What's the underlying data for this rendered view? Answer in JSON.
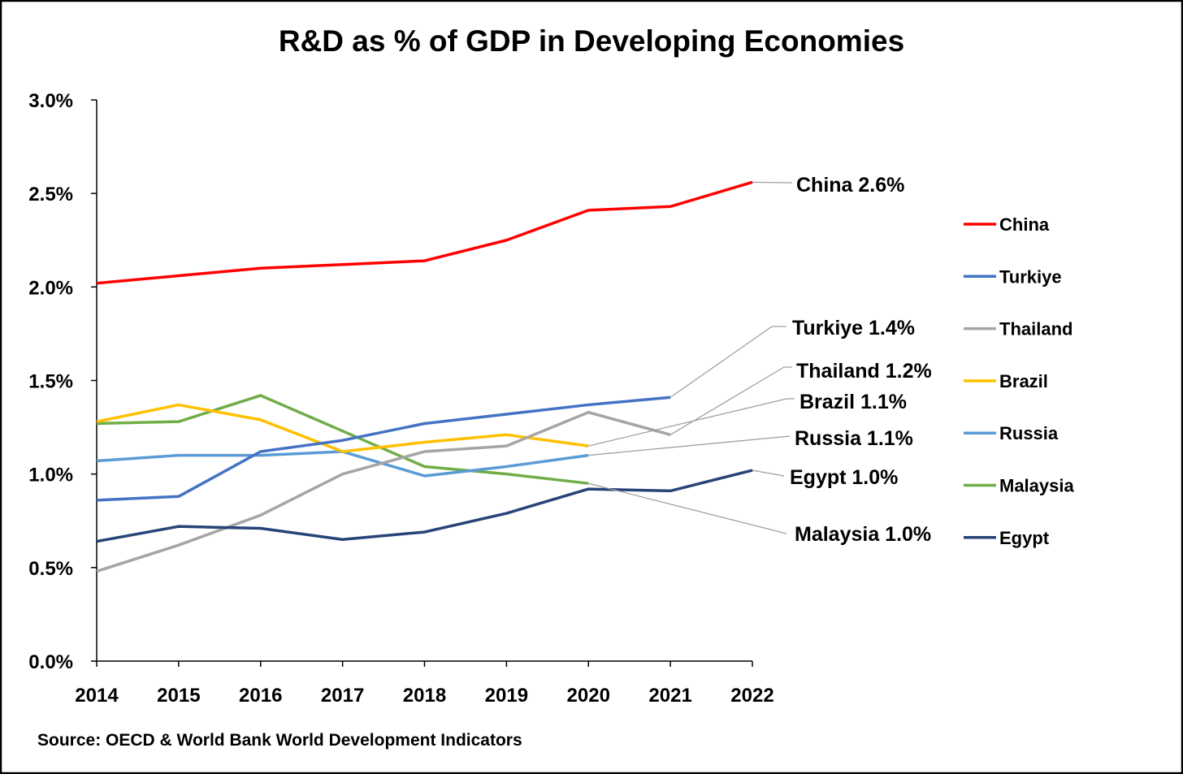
{
  "chart_data": {
    "type": "line",
    "title": "R&D as % of GDP in Developing Economies",
    "xlabel": "",
    "ylabel": "",
    "source": "Source:  OECD & World Bank World Development Indicators",
    "x": [
      2014,
      2015,
      2016,
      2017,
      2018,
      2019,
      2020,
      2021,
      2022
    ],
    "x_tick_labels": [
      "2014",
      "2015",
      "2016",
      "2017",
      "2018",
      "2019",
      "2020",
      "2021",
      "2022"
    ],
    "ylim": [
      0,
      3.0
    ],
    "y_ticks": [
      0,
      0.5,
      1.0,
      1.5,
      2.0,
      2.5,
      3.0
    ],
    "y_tick_labels": [
      "0.0%",
      "0.5%",
      "1.0%",
      "1.5%",
      "2.0%",
      "2.5%",
      "3.0%"
    ],
    "grid": false,
    "legend_position": "right",
    "series": [
      {
        "name": "China",
        "color": "#ff0000",
        "values": [
          2.02,
          2.06,
          2.1,
          2.12,
          2.14,
          2.25,
          2.41,
          2.43,
          2.56
        ],
        "annotation": "China 2.6%"
      },
      {
        "name": "Turkiye",
        "color": "#4472c4",
        "values": [
          0.86,
          0.88,
          1.12,
          1.18,
          1.27,
          1.32,
          1.37,
          1.41,
          null
        ],
        "annotation": "Turkiye 1.4%"
      },
      {
        "name": "Thailand",
        "color": "#a5a5a5",
        "values": [
          0.48,
          0.62,
          0.78,
          1.0,
          1.12,
          1.15,
          1.33,
          1.21,
          null
        ],
        "annotation": "Thailand 1.2%"
      },
      {
        "name": "Brazil",
        "color": "#ffc000",
        "values": [
          1.28,
          1.37,
          1.29,
          1.12,
          1.17,
          1.21,
          1.15,
          null,
          null
        ],
        "annotation": "Brazil 1.1%"
      },
      {
        "name": "Russia",
        "color": "#5b9bd5",
        "values": [
          1.07,
          1.1,
          1.1,
          1.12,
          0.99,
          1.04,
          1.1,
          null,
          null
        ],
        "annotation": "Russia 1.1%"
      },
      {
        "name": "Malaysia",
        "color": "#70ad47",
        "values": [
          1.27,
          1.28,
          1.42,
          1.23,
          1.04,
          1.0,
          0.95,
          null,
          null
        ],
        "annotation": "Malaysia 1.0%"
      },
      {
        "name": "Egypt",
        "color": "#264478",
        "values": [
          0.64,
          0.72,
          0.71,
          0.65,
          0.69,
          0.79,
          0.92,
          0.91,
          1.02
        ],
        "annotation": "Egypt 1.0%"
      }
    ]
  }
}
